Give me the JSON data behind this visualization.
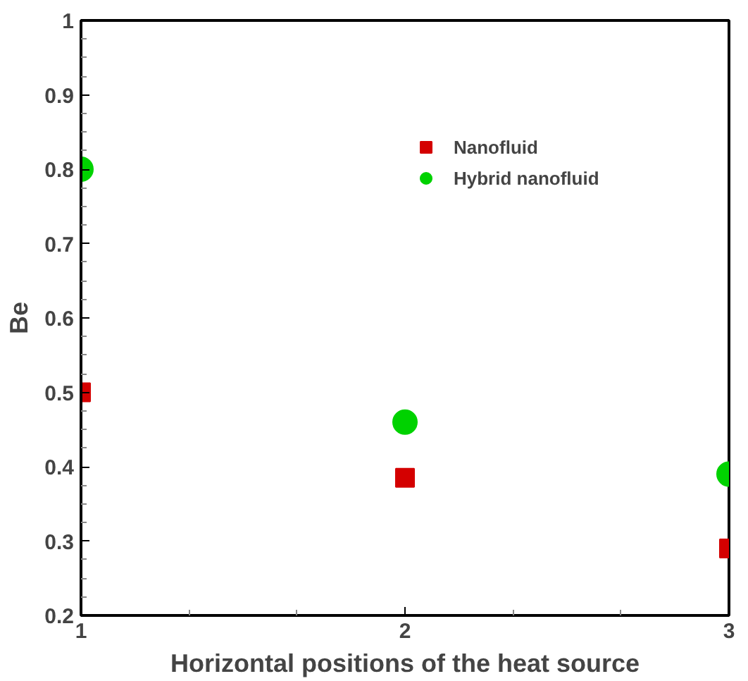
{
  "chart_data": {
    "type": "scatter",
    "xlabel": "Horizontal positions of the heat source",
    "ylabel": "Be",
    "x": [
      1,
      2,
      3
    ],
    "series": [
      {
        "name": "Nanofluid",
        "color": "#d40000",
        "marker": "square",
        "values": [
          0.5,
          0.385,
          0.29
        ]
      },
      {
        "name": "Hybrid nanofluid",
        "color": "#00d200",
        "marker": "circle",
        "values": [
          0.8,
          0.46,
          0.39
        ]
      }
    ],
    "xlim": [
      1,
      3
    ],
    "ylim": [
      0.2,
      1
    ],
    "xticks": [
      1,
      2,
      3
    ],
    "yticks": [
      0.2,
      0.3,
      0.4,
      0.5,
      0.6,
      0.7,
      0.8,
      0.9,
      1
    ],
    "grid": false,
    "legend": "top"
  }
}
